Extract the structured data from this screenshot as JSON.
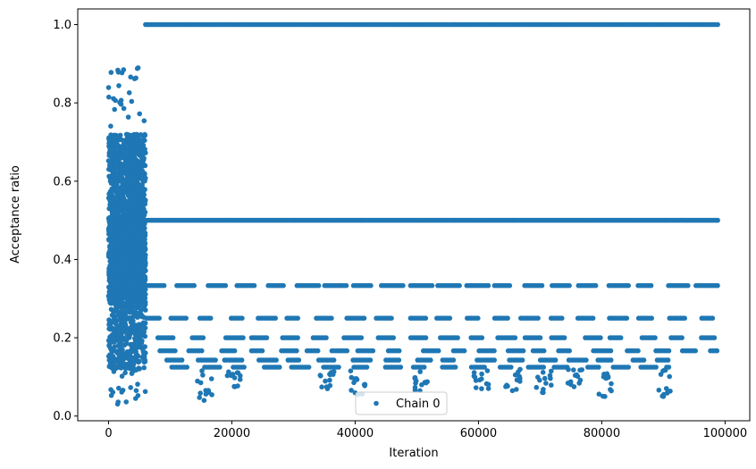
{
  "chart_data": {
    "type": "scatter",
    "xlabel": "Iteration",
    "ylabel": "Acceptance ratio",
    "xlim": [
      -5000,
      104000
    ],
    "ylim": [
      -0.012,
      1.04
    ],
    "xticks": [
      0,
      20000,
      40000,
      60000,
      80000,
      100000
    ],
    "xtick_labels": [
      "0",
      "20000",
      "40000",
      "60000",
      "80000",
      "100000"
    ],
    "yticks": [
      0.0,
      0.2,
      0.4,
      0.6,
      0.8,
      1.0
    ],
    "ytick_labels": [
      "0.0",
      "0.2",
      "0.4",
      "0.6",
      "0.8",
      "1.0"
    ],
    "grid": false,
    "legend": {
      "position": "bottom-center",
      "entries": [
        "Chain 0"
      ]
    },
    "series": [
      {
        "name": "Chain 0",
        "color": "#1f77b4",
        "marker": "circle",
        "x_range": [
          0,
          99000
        ],
        "burn_in_end": 6000,
        "burn_in_y_range": [
          0.03,
          0.89
        ],
        "levels": [
          {
            "y": 1.0,
            "x_range": [
              6000,
              99000
            ]
          },
          {
            "y": 0.5,
            "x_range": [
              6000,
              99000
            ]
          },
          {
            "y": 0.3333,
            "x_range": [
              6000,
              99000
            ]
          },
          {
            "y": 0.25,
            "x_range": [
              6000,
              99000
            ]
          },
          {
            "y": 0.2,
            "x_range": [
              7500,
              99000
            ]
          },
          {
            "y": 0.1667,
            "x_range": [
              8000,
              99000
            ]
          },
          {
            "y": 0.1429,
            "x_range": [
              9000,
              91000
            ]
          },
          {
            "y": 0.125,
            "x_range": [
              10000,
              91000
            ]
          }
        ],
        "min_y_dips": [
          {
            "x": 15500,
            "y": 0.04
          },
          {
            "x": 20500,
            "y": 0.075
          },
          {
            "x": 35500,
            "y": 0.07
          },
          {
            "x": 40500,
            "y": 0.055
          },
          {
            "x": 50500,
            "y": 0.065
          },
          {
            "x": 60500,
            "y": 0.07
          },
          {
            "x": 65500,
            "y": 0.065
          },
          {
            "x": 70500,
            "y": 0.06
          },
          {
            "x": 75500,
            "y": 0.075
          },
          {
            "x": 80500,
            "y": 0.05
          },
          {
            "x": 90000,
            "y": 0.05
          }
        ]
      }
    ]
  }
}
